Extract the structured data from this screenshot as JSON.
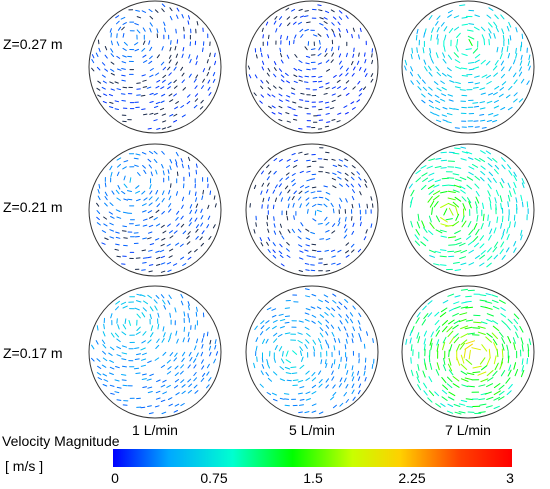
{
  "rows": [
    {
      "label": "Z=0.27 m"
    },
    {
      "label": "Z=0.21 m"
    },
    {
      "label": "Z=0.17 m"
    }
  ],
  "columns": [
    {
      "label": "1 L/min"
    },
    {
      "label": "5 L/min"
    },
    {
      "label": "7 L/min"
    }
  ],
  "colorbar": {
    "title": "Velocity Magnitude",
    "units": "[ m/s ]",
    "ticks": [
      "0",
      "0.75",
      "1.5",
      "2.25",
      "3"
    ],
    "range": [
      0,
      3
    ],
    "colors": [
      "#0000ff",
      "#00a8ff",
      "#00ffd0",
      "#00ff00",
      "#c8ff00",
      "#ffd000",
      "#ff4000",
      "#ff0000"
    ]
  },
  "panels": [
    {
      "id": "r0c0",
      "vortex": "upper-left",
      "max_level": 0.15
    },
    {
      "id": "r0c1",
      "vortex": "upper-center",
      "max_level": 0.1
    },
    {
      "id": "r0c2",
      "vortex": "upper-center",
      "max_level": 0.45
    },
    {
      "id": "r1c0",
      "vortex": "upper-left",
      "max_level": 0.2
    },
    {
      "id": "r1c1",
      "vortex": "center",
      "max_level": 0.15
    },
    {
      "id": "r1c2",
      "vortex": "center-left",
      "max_level": 0.7
    },
    {
      "id": "r2c0",
      "vortex": "upper-left",
      "max_level": 0.3
    },
    {
      "id": "r2c1",
      "vortex": "center-left",
      "max_level": 0.3
    },
    {
      "id": "r2c2",
      "vortex": "center",
      "max_level": 0.85
    }
  ]
}
